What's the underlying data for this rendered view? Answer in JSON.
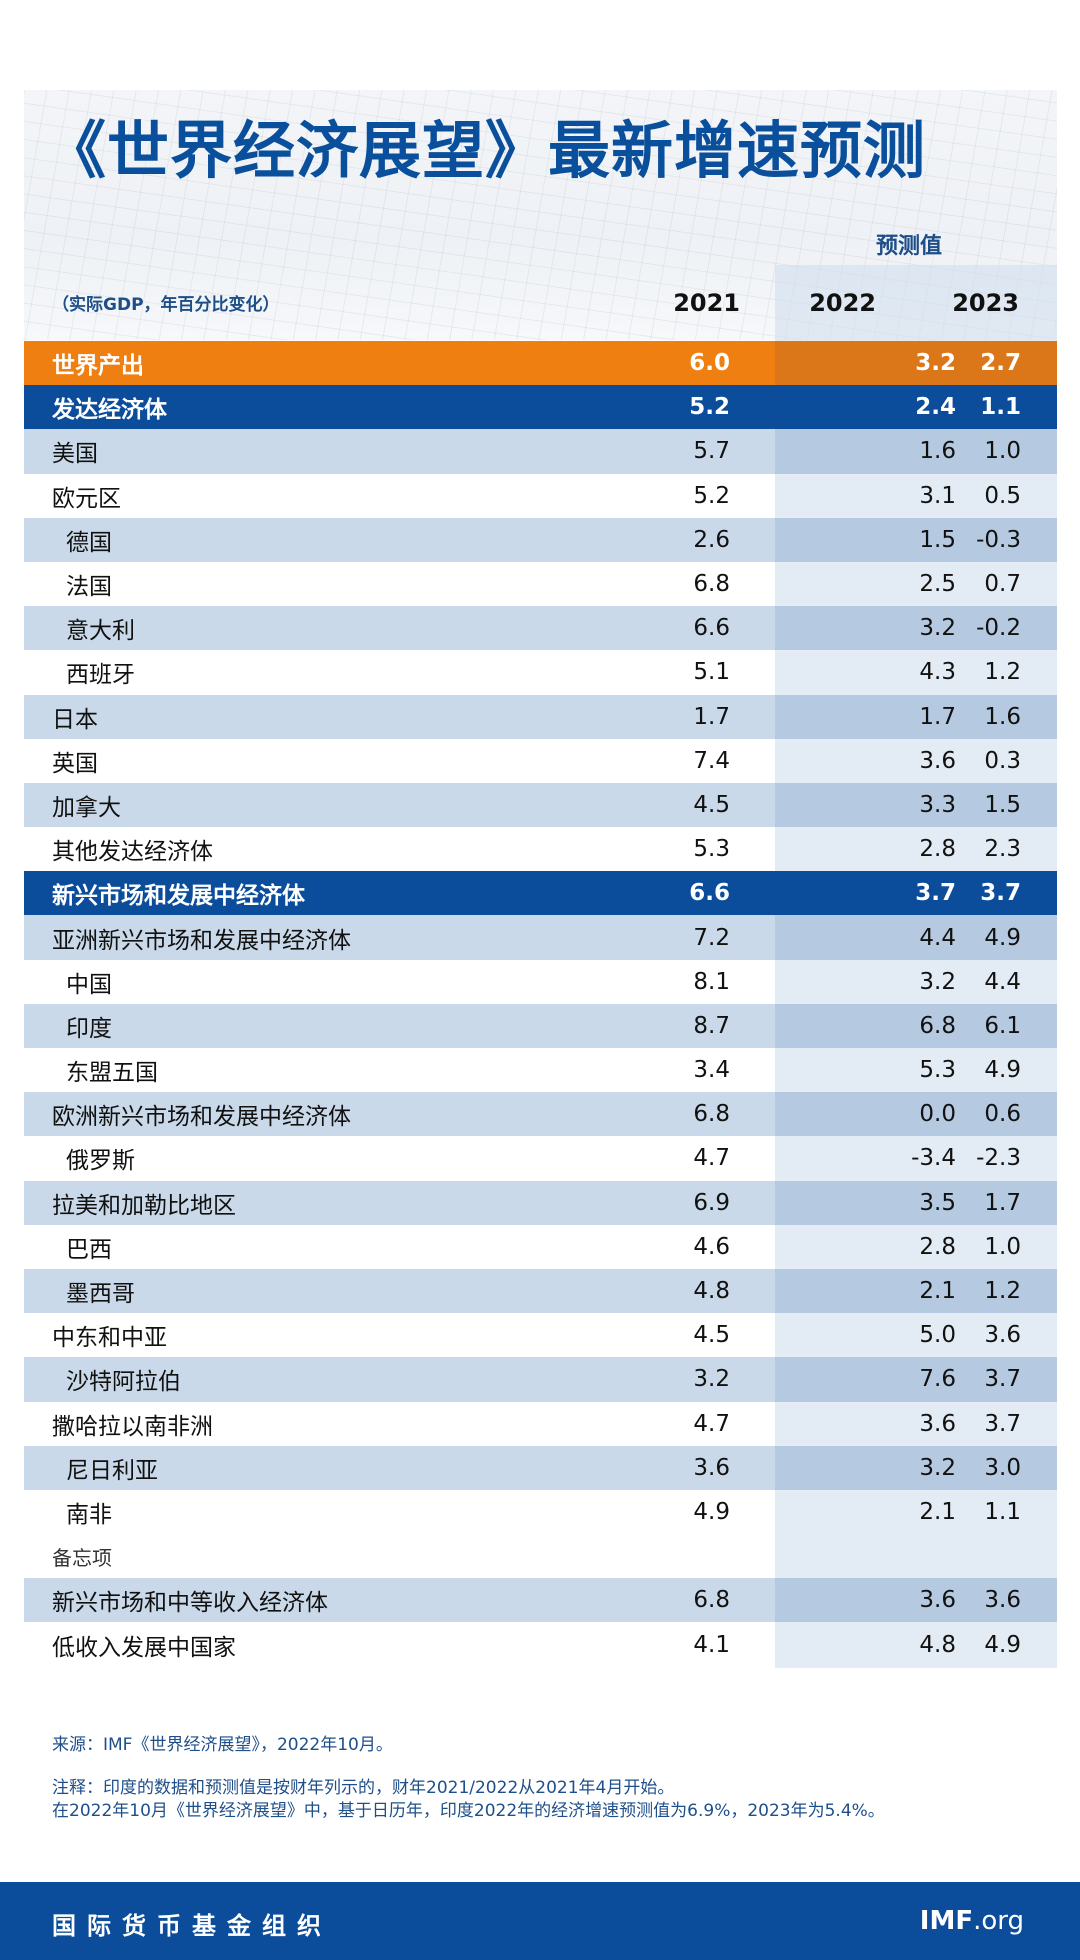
{
  "header": {
    "title": "《世界经济展望》最新增速预测",
    "subtitle": "（实际GDP，年百分比变化）",
    "forecast_label": "预测值",
    "years": [
      "2021",
      "2022",
      "2023"
    ]
  },
  "rows": [
    {
      "label": "世界产出",
      "style": "orange",
      "values": [
        "6.0",
        "3.2",
        "2.7"
      ]
    },
    {
      "label": "发达经济体",
      "style": "blue",
      "values": [
        "5.2",
        "2.4",
        "1.1"
      ]
    },
    {
      "label": "美国",
      "style": "stripe",
      "values": [
        "5.7",
        "1.6",
        "1.0"
      ]
    },
    {
      "label": "欧元区",
      "style": "white",
      "values": [
        "5.2",
        "3.1",
        "0.5"
      ]
    },
    {
      "label": "德国",
      "style": "stripe indent",
      "values": [
        "2.6",
        "1.5",
        "-0.3"
      ]
    },
    {
      "label": "法国",
      "style": "white indent",
      "values": [
        "6.8",
        "2.5",
        "0.7"
      ]
    },
    {
      "label": "意大利",
      "style": "stripe indent",
      "values": [
        "6.6",
        "3.2",
        "-0.2"
      ]
    },
    {
      "label": "西班牙",
      "style": "white indent",
      "values": [
        "5.1",
        "4.3",
        "1.2"
      ]
    },
    {
      "label": "日本",
      "style": "stripe",
      "values": [
        "1.7",
        "1.7",
        "1.6"
      ]
    },
    {
      "label": "英国",
      "style": "white",
      "values": [
        "7.4",
        "3.6",
        "0.3"
      ]
    },
    {
      "label": "加拿大",
      "style": "stripe",
      "values": [
        "4.5",
        "3.3",
        "1.5"
      ]
    },
    {
      "label": "其他发达经济体",
      "style": "white",
      "values": [
        "5.3",
        "2.8",
        "2.3"
      ]
    },
    {
      "label": "新兴市场和发展中经济体",
      "style": "blue",
      "values": [
        "6.6",
        "3.7",
        "3.7"
      ]
    },
    {
      "label": "亚洲新兴市场和发展中经济体",
      "style": "stripe",
      "values": [
        "7.2",
        "4.4",
        "4.9"
      ]
    },
    {
      "label": "中国",
      "style": "white indent",
      "values": [
        "8.1",
        "3.2",
        "4.4"
      ]
    },
    {
      "label": "印度",
      "style": "stripe indent",
      "values": [
        "8.7",
        "6.8",
        "6.1"
      ]
    },
    {
      "label": "东盟五国",
      "style": "white indent",
      "values": [
        "3.4",
        "5.3",
        "4.9"
      ]
    },
    {
      "label": "欧洲新兴市场和发展中经济体",
      "style": "stripe",
      "values": [
        "6.8",
        "0.0",
        "0.6"
      ]
    },
    {
      "label": "俄罗斯",
      "style": "white indent",
      "values": [
        "4.7",
        "-3.4",
        "-2.3"
      ]
    },
    {
      "label": "拉美和加勒比地区",
      "style": "stripe",
      "values": [
        "6.9",
        "3.5",
        "1.7"
      ]
    },
    {
      "label": "巴西",
      "style": "white indent",
      "values": [
        "4.6",
        "2.8",
        "1.0"
      ]
    },
    {
      "label": "墨西哥",
      "style": "stripe indent",
      "values": [
        "4.8",
        "2.1",
        "1.2"
      ]
    },
    {
      "label": "中东和中亚",
      "style": "white",
      "values": [
        "4.5",
        "5.0",
        "3.6"
      ]
    },
    {
      "label": "沙特阿拉伯",
      "style": "stripe indent",
      "values": [
        "3.2",
        "7.6",
        "3.7"
      ]
    },
    {
      "label": "撒哈拉以南非洲",
      "style": "white",
      "values": [
        "4.7",
        "3.6",
        "3.7"
      ]
    },
    {
      "label": "尼日利亚",
      "style": "stripe indent",
      "values": [
        "3.6",
        "3.2",
        "3.0"
      ]
    },
    {
      "label": "南非",
      "style": "white indent",
      "values": [
        "4.9",
        "2.1",
        "1.1"
      ]
    },
    {
      "label": "备忘项",
      "style": "white memo",
      "values": [
        "",
        "",
        ""
      ]
    },
    {
      "label": "新兴市场和中等收入经济体",
      "style": "stripe",
      "values": [
        "6.8",
        "3.6",
        "3.6"
      ]
    },
    {
      "label": "低收入发展中国家",
      "style": "white",
      "values": [
        "4.1",
        "4.8",
        "4.9"
      ]
    }
  ],
  "notes": {
    "source": "来源：IMF《世界经济展望》，2022年10月。",
    "note_line1": "注释：印度的数据和预测值是按财年列示的，财年2021/2022从2021年4月开始。",
    "note_line2": "在2022年10月《世界经济展望》中，基于日历年，印度2022年的经济增速预测值为6.9%，2023年为5.4%。"
  },
  "footer": {
    "org_name": "国际货币基金组织",
    "site_bold": "IMF",
    "site_rest": ".org"
  },
  "colors": {
    "brand_blue": "#0b4d9a",
    "accent_orange": "#ef7f10",
    "stripe": "#c9d9e9",
    "forecast_band": "#e3ebf4",
    "note_text": "#1f4f8a"
  },
  "chart_data": {
    "type": "table",
    "title": "《世界经济展望》最新增速预测",
    "subtitle": "（实际GDP，年百分比变化）",
    "columns": [
      "2021",
      "2022",
      "2023"
    ],
    "forecast_columns": [
      "2022",
      "2023"
    ]
  }
}
